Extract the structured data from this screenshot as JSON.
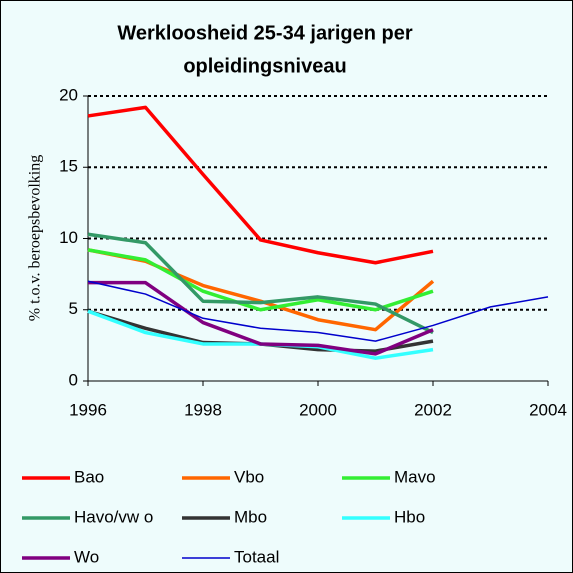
{
  "chart_data": {
    "type": "line",
    "title": [
      "Werkloosheid 25-34 jarigen per",
      "opleidingsniveau"
    ],
    "y_label": "% t.o.v. beroepsbevolking",
    "x": [
      1996,
      1997,
      1998,
      1999,
      2000,
      2001,
      2002,
      2003,
      2004
    ],
    "xlim": [
      1996,
      2004
    ],
    "xticks": [
      1996,
      1998,
      2000,
      2002,
      2004
    ],
    "ylim": [
      0,
      20
    ],
    "yticks": [
      0,
      5,
      10,
      15,
      20
    ],
    "grid": true,
    "series": [
      {
        "name": "Bao",
        "color": "#ff0000",
        "values": [
          18.6,
          19.2,
          14.5,
          9.9,
          9.0,
          8.3,
          9.1,
          null,
          null
        ]
      },
      {
        "name": "Vbo",
        "color": "#ff6600",
        "values": [
          9.2,
          8.4,
          6.7,
          5.6,
          4.3,
          3.6,
          7.0,
          null,
          null
        ]
      },
      {
        "name": "Mavo",
        "color": "#33ee33",
        "values": [
          9.2,
          8.5,
          6.3,
          5.0,
          5.7,
          5.0,
          6.3,
          null,
          null
        ]
      },
      {
        "name": "Havo/vw o",
        "color": "#339966",
        "values": [
          10.3,
          9.7,
          5.6,
          5.5,
          5.9,
          5.4,
          3.4,
          null,
          null
        ]
      },
      {
        "name": "Mbo",
        "color": "#333333",
        "values": [
          4.9,
          3.7,
          2.7,
          2.6,
          2.2,
          2.1,
          2.8,
          null,
          null
        ]
      },
      {
        "name": "Hbo",
        "color": "#33ffff",
        "values": [
          4.9,
          3.4,
          2.6,
          2.6,
          2.4,
          1.6,
          2.2,
          null,
          null
        ]
      },
      {
        "name": "Wo",
        "color": "#800080",
        "values": [
          6.9,
          6.9,
          4.1,
          2.6,
          2.5,
          1.9,
          3.6,
          null,
          null
        ]
      },
      {
        "name": "Totaal",
        "color": "#0000cc",
        "values": [
          7.0,
          6.1,
          4.4,
          3.7,
          3.4,
          2.8,
          3.9,
          5.2,
          5.9
        ]
      }
    ]
  }
}
